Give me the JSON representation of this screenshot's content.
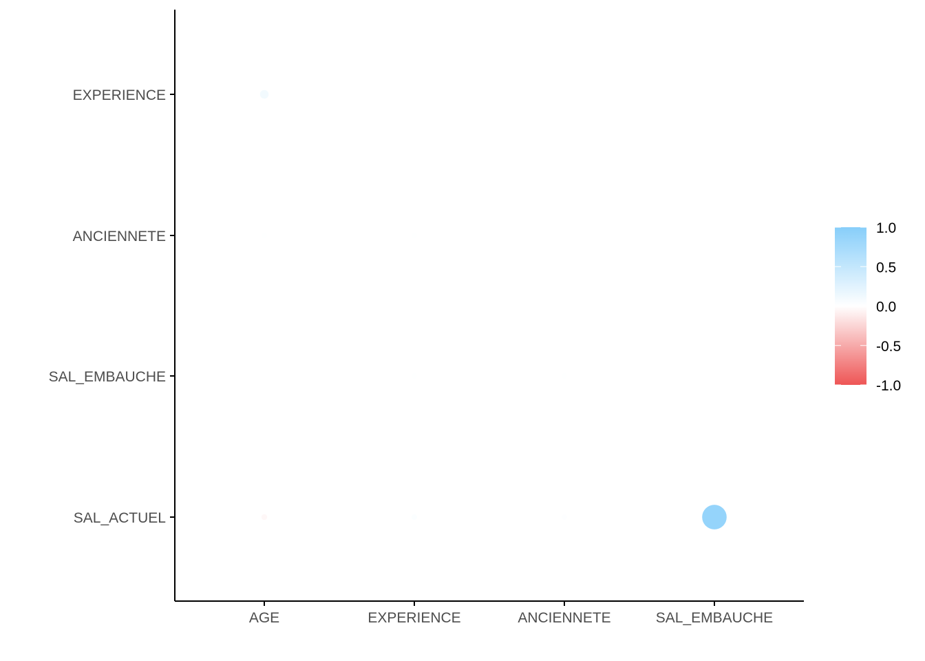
{
  "chart_data": {
    "type": "scatter",
    "subtype": "correlation-bubble-matrix",
    "x_categories": [
      "AGE",
      "EXPERIENCE",
      "ANCIENNETE",
      "SAL_EMBAUCHE"
    ],
    "y_categories": [
      "EXPERIENCE",
      "ANCIENNETE",
      "SAL_EMBAUCHE",
      "SAL_ACTUEL"
    ],
    "cells": [
      {
        "x": "AGE",
        "y": "EXPERIENCE",
        "value": 0.11
      },
      {
        "x": "AGE",
        "y": "ANCIENNETE",
        "value": 0.01
      },
      {
        "x": "EXPERIENCE",
        "y": "ANCIENNETE",
        "value": 0.01
      },
      {
        "x": "AGE",
        "y": "SAL_EMBAUCHE",
        "value": 0.0
      },
      {
        "x": "EXPERIENCE",
        "y": "SAL_EMBAUCHE",
        "value": 0.01
      },
      {
        "x": "ANCIENNETE",
        "y": "SAL_EMBAUCHE",
        "value": 0.01
      },
      {
        "x": "AGE",
        "y": "SAL_ACTUEL",
        "value": -0.05
      },
      {
        "x": "EXPERIENCE",
        "y": "SAL_ACTUEL",
        "value": 0.03
      },
      {
        "x": "ANCIENNETE",
        "y": "SAL_ACTUEL",
        "value": 0.02
      },
      {
        "x": "SAL_EMBAUCHE",
        "y": "SAL_ACTUEL",
        "value": 0.88
      }
    ],
    "legend": {
      "position": "right",
      "ticks": [
        "1.0",
        "0.5",
        "0.0",
        "-0.5",
        "-1.0"
      ],
      "range": [
        -1,
        1
      ]
    },
    "colors": {
      "high": "#87CEFA",
      "mid": "#FFFFFF",
      "low": "#EE5555",
      "axis": "#000000",
      "tick_label": "#4d4d4d"
    },
    "grid": false
  }
}
